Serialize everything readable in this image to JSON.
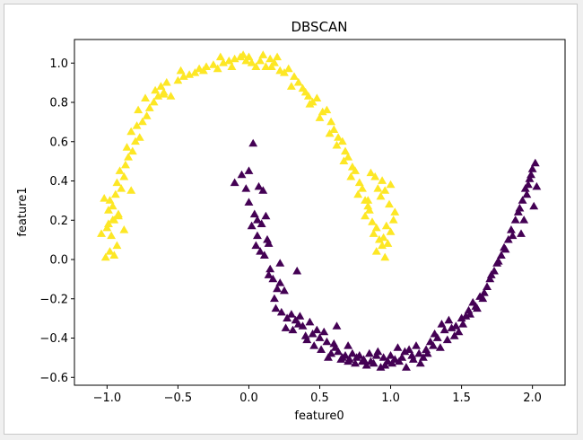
{
  "chart_data": {
    "type": "scatter",
    "title": "DBSCAN",
    "xlabel": "feature0",
    "ylabel": "feature1",
    "xlim": [
      -1.23,
      2.23
    ],
    "ylim": [
      -0.64,
      1.12
    ],
    "xticks": [
      -1.0,
      -0.5,
      0.0,
      0.5,
      1.0,
      1.5,
      2.0
    ],
    "xtick_labels": [
      "−1.0",
      "−0.5",
      "0.0",
      "0.5",
      "1.0",
      "1.5",
      "2.0"
    ],
    "yticks": [
      -0.6,
      -0.4,
      -0.2,
      0.0,
      0.2,
      0.4,
      0.6,
      0.8,
      1.0
    ],
    "ytick_labels": [
      "−0.6",
      "−0.4",
      "−0.2",
      "0.0",
      "0.2",
      "0.4",
      "0.6",
      "0.8",
      "1.0"
    ],
    "grid": false,
    "marker": "triangle",
    "series": [
      {
        "cluster": 0,
        "color": "#fde725",
        "x": [
          -1.01,
          -0.98,
          -0.95,
          -0.93,
          -0.97,
          -1.0,
          -1.04,
          -0.99,
          -0.95,
          -0.92,
          -0.96,
          -0.98,
          -0.94,
          -0.9,
          -0.93,
          -0.88,
          -0.91,
          -0.87,
          -0.85,
          -0.82,
          -0.86,
          -0.8,
          -0.77,
          -0.83,
          -0.79,
          -0.75,
          -0.72,
          -0.78,
          -0.7,
          -0.67,
          -0.73,
          -0.64,
          -0.6,
          -0.66,
          -0.62,
          -0.58,
          -0.55,
          -0.6,
          -0.5,
          -0.46,
          -0.42,
          -0.48,
          -0.38,
          -0.35,
          -0.3,
          -0.32,
          -0.25,
          -0.22,
          -0.18,
          -0.2,
          -0.14,
          -0.1,
          -0.12,
          -0.06,
          -0.02,
          -0.04,
          0.02,
          0.05,
          0.0,
          0.08,
          0.12,
          0.15,
          0.1,
          0.18,
          0.22,
          0.2,
          0.25,
          0.16,
          0.28,
          0.32,
          0.35,
          0.3,
          0.38,
          0.42,
          0.4,
          0.45,
          0.48,
          0.43,
          0.52,
          0.55,
          0.5,
          0.58,
          0.6,
          0.57,
          0.63,
          0.66,
          0.62,
          0.68,
          0.7,
          0.67,
          0.73,
          0.75,
          0.72,
          0.78,
          0.8,
          0.77,
          0.82,
          0.84,
          0.85,
          0.82,
          0.87,
          0.9,
          0.88,
          0.92,
          0.94,
          0.9,
          0.96,
          0.98,
          0.95,
          1.0,
          0.97,
          1.02,
          1.03,
          0.99,
          0.93,
          0.96,
          1.0,
          0.94,
          0.89,
          0.86,
          0.91,
          0.84,
          -0.96,
          -0.92,
          -0.99,
          -1.02,
          -0.88,
          -0.83
        ],
        "y": [
          0.01,
          0.04,
          0.02,
          0.07,
          0.12,
          0.16,
          0.13,
          0.18,
          0.2,
          0.23,
          0.27,
          0.3,
          0.33,
          0.36,
          0.39,
          0.42,
          0.45,
          0.48,
          0.52,
          0.55,
          0.57,
          0.6,
          0.62,
          0.65,
          0.68,
          0.7,
          0.73,
          0.76,
          0.77,
          0.8,
          0.82,
          0.83,
          0.85,
          0.86,
          0.88,
          0.9,
          0.83,
          0.84,
          0.91,
          0.93,
          0.94,
          0.96,
          0.95,
          0.97,
          0.98,
          0.96,
          0.99,
          0.97,
          1.0,
          1.03,
          1.01,
          1.02,
          0.98,
          1.03,
          1.01,
          1.04,
          1.0,
          0.98,
          1.03,
          1.01,
          0.98,
          1.02,
          1.04,
          1.0,
          0.96,
          1.03,
          0.95,
          0.98,
          0.97,
          0.93,
          0.9,
          0.88,
          0.87,
          0.83,
          0.85,
          0.8,
          0.82,
          0.79,
          0.75,
          0.76,
          0.72,
          0.7,
          0.66,
          0.64,
          0.62,
          0.6,
          0.58,
          0.55,
          0.52,
          0.5,
          0.47,
          0.45,
          0.42,
          0.39,
          0.36,
          0.33,
          0.3,
          0.27,
          0.25,
          0.22,
          0.19,
          0.16,
          0.13,
          0.1,
          0.07,
          0.04,
          0.01,
          0.08,
          0.11,
          0.14,
          0.17,
          0.2,
          0.24,
          0.28,
          0.32,
          0.35,
          0.38,
          0.4,
          0.42,
          0.44,
          0.36,
          0.3,
          0.2,
          0.22,
          0.25,
          0.31,
          0.15,
          0.35
        ]
      },
      {
        "cluster": 1,
        "color": "#440154",
        "x": [
          -0.1,
          -0.05,
          -0.02,
          0.0,
          0.04,
          0.02,
          0.06,
          0.09,
          0.12,
          0.05,
          0.08,
          0.0,
          0.03,
          0.1,
          0.07,
          0.13,
          0.15,
          0.11,
          0.17,
          0.2,
          0.14,
          0.18,
          0.22,
          0.25,
          0.19,
          0.23,
          0.27,
          0.3,
          0.26,
          0.33,
          0.35,
          0.31,
          0.38,
          0.4,
          0.36,
          0.43,
          0.45,
          0.41,
          0.48,
          0.5,
          0.46,
          0.53,
          0.55,
          0.51,
          0.58,
          0.6,
          0.56,
          0.63,
          0.65,
          0.61,
          0.68,
          0.7,
          0.66,
          0.73,
          0.75,
          0.71,
          0.78,
          0.8,
          0.76,
          0.83,
          0.85,
          0.81,
          0.88,
          0.9,
          0.86,
          0.93,
          0.95,
          0.91,
          0.98,
          1.0,
          0.96,
          1.03,
          1.05,
          1.01,
          1.08,
          1.1,
          1.06,
          1.13,
          1.15,
          1.11,
          1.18,
          1.2,
          1.16,
          1.23,
          1.25,
          1.21,
          1.28,
          1.3,
          1.26,
          1.33,
          1.35,
          1.31,
          1.38,
          1.4,
          1.36,
          1.43,
          1.45,
          1.41,
          1.48,
          1.5,
          1.46,
          1.53,
          1.55,
          1.51,
          1.58,
          1.6,
          1.56,
          1.63,
          1.65,
          1.61,
          1.68,
          1.7,
          1.66,
          1.73,
          1.75,
          1.71,
          1.78,
          1.8,
          1.76,
          1.83,
          1.85,
          1.81,
          1.88,
          1.9,
          1.86,
          1.93,
          1.95,
          1.91,
          1.98,
          2.0,
          1.96,
          2.02,
          1.99,
          1.97,
          2.03,
          1.94,
          1.92,
          2.01,
          0.06,
          0.14,
          0.22,
          0.34,
          0.62,
          0.7
        ],
        "y": [
          0.39,
          0.43,
          0.36,
          0.29,
          0.23,
          0.17,
          0.12,
          0.18,
          0.22,
          0.07,
          0.04,
          0.45,
          0.59,
          0.35,
          0.37,
          0.1,
          -0.05,
          0.02,
          -0.1,
          -0.15,
          -0.08,
          -0.2,
          -0.12,
          -0.16,
          -0.25,
          -0.27,
          -0.3,
          -0.28,
          -0.35,
          -0.31,
          -0.33,
          -0.36,
          -0.34,
          -0.39,
          -0.29,
          -0.32,
          -0.38,
          -0.41,
          -0.36,
          -0.4,
          -0.44,
          -0.37,
          -0.42,
          -0.46,
          -0.48,
          -0.43,
          -0.5,
          -0.47,
          -0.51,
          -0.45,
          -0.49,
          -0.52,
          -0.5,
          -0.48,
          -0.53,
          -0.51,
          -0.49,
          -0.52,
          -0.5,
          -0.54,
          -0.48,
          -0.51,
          -0.53,
          -0.49,
          -0.52,
          -0.55,
          -0.5,
          -0.47,
          -0.52,
          -0.49,
          -0.54,
          -0.51,
          -0.45,
          -0.53,
          -0.5,
          -0.47,
          -0.52,
          -0.46,
          -0.49,
          -0.55,
          -0.44,
          -0.48,
          -0.51,
          -0.5,
          -0.46,
          -0.53,
          -0.42,
          -0.44,
          -0.48,
          -0.4,
          -0.45,
          -0.38,
          -0.36,
          -0.41,
          -0.33,
          -0.35,
          -0.39,
          -0.31,
          -0.37,
          -0.3,
          -0.34,
          -0.29,
          -0.26,
          -0.33,
          -0.22,
          -0.24,
          -0.28,
          -0.19,
          -0.2,
          -0.25,
          -0.14,
          -0.1,
          -0.17,
          -0.06,
          -0.02,
          -0.08,
          0.02,
          0.06,
          -0.01,
          0.1,
          0.15,
          0.05,
          0.2,
          0.24,
          0.12,
          0.3,
          0.36,
          0.26,
          0.41,
          0.46,
          0.33,
          0.49,
          0.43,
          0.38,
          0.37,
          0.2,
          0.13,
          0.27,
          0.2,
          0.08,
          -0.02,
          -0.06,
          -0.34,
          -0.44
        ]
      }
    ]
  }
}
